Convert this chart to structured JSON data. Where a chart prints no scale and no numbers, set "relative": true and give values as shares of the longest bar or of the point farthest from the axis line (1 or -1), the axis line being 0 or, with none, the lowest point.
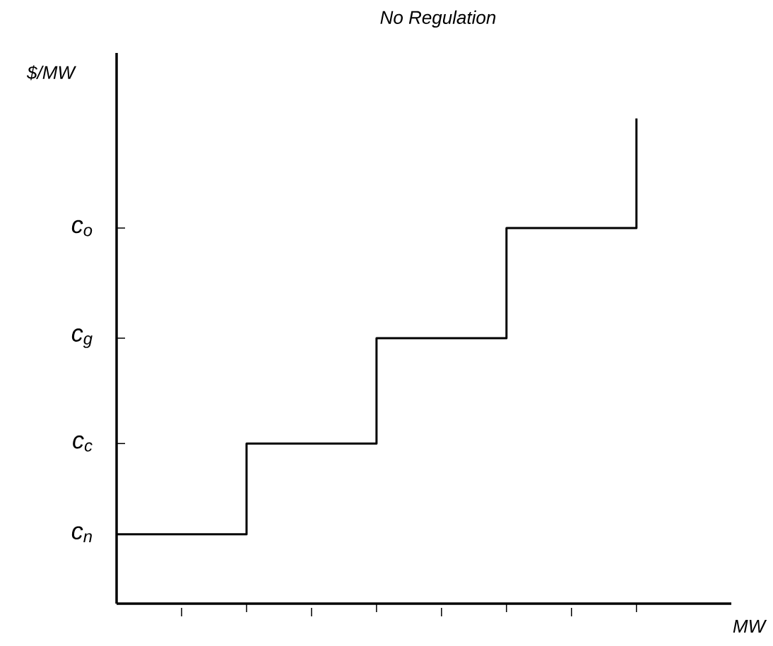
{
  "chart_data": {
    "type": "step",
    "title": "No Regulation",
    "xlabel": "MW",
    "ylabel": "$/MW",
    "categories": [
      null,
      null,
      null,
      null,
      null
    ],
    "relative": true,
    "series": [
      {
        "color": "#000000",
        "values": [
          0.143,
          0.33,
          0.547,
          0.774,
          1
        ]
      }
    ],
    "annotations": [
      "c$_{n}$",
      "c$_{c}$",
      "c$_{g}$",
      "c$_{o}$"
    ],
    "grid": false,
    "marker": "none",
    "line_style": "solid"
  }
}
